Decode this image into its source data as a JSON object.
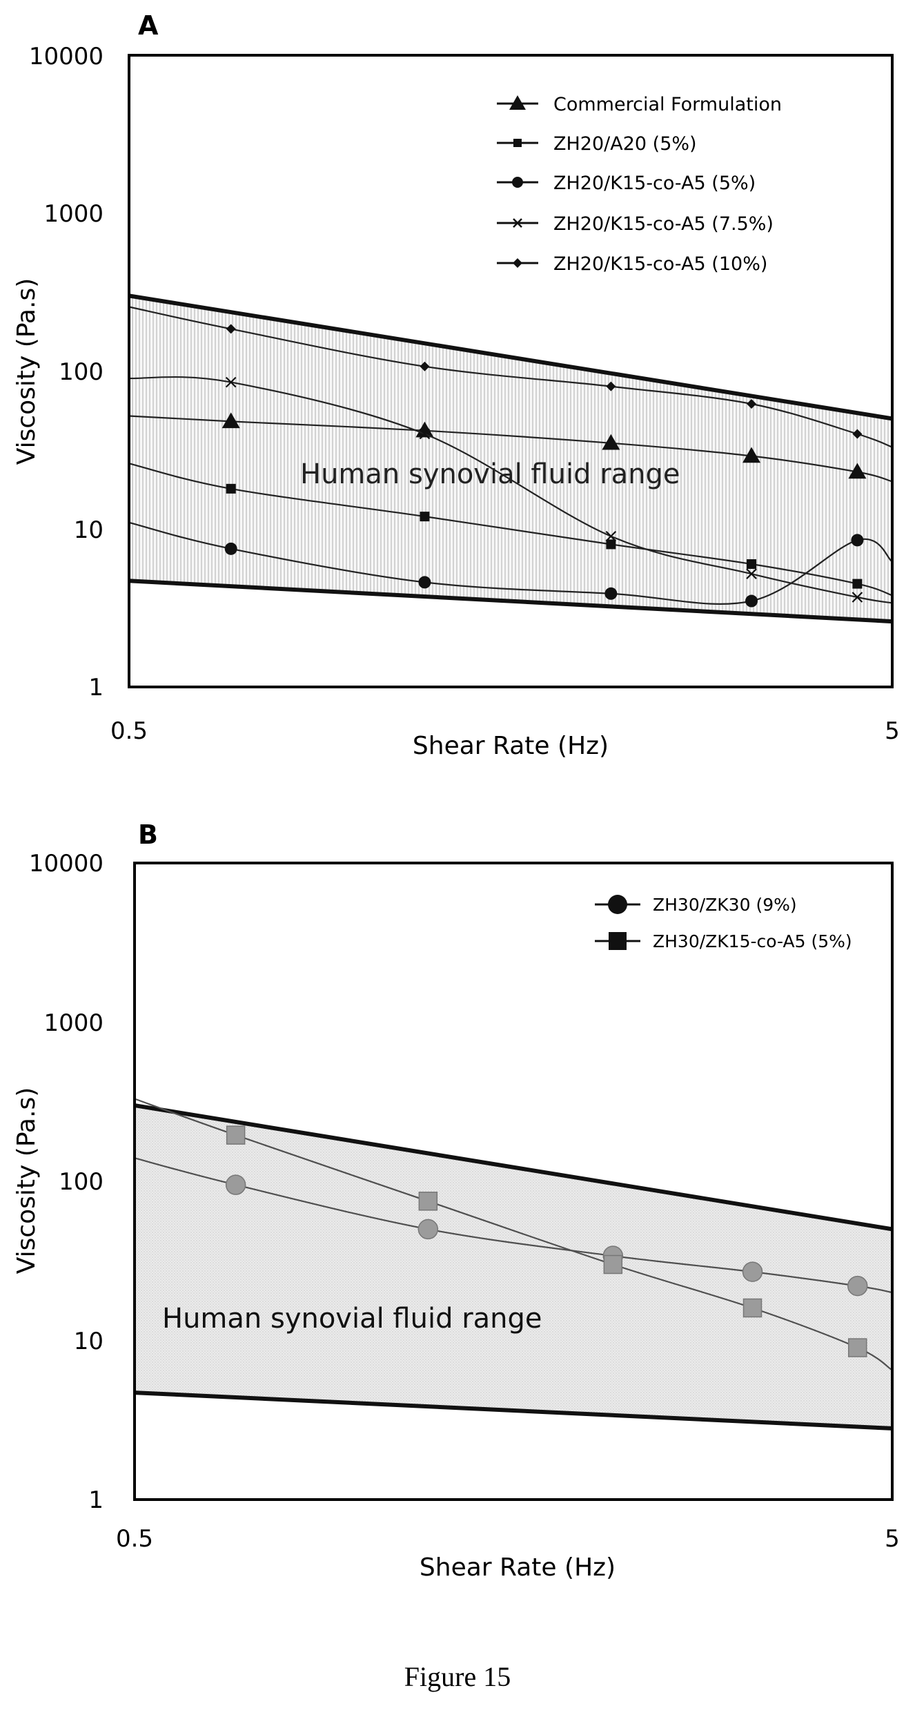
{
  "figure_caption": "Figure 15",
  "chart_data": [
    {
      "panel_label": "A",
      "type": "line",
      "x_scale": "log",
      "y_scale": "log",
      "xlabel": "Shear Rate (Hz)",
      "ylabel": "Viscosity (Pa.s)",
      "xlim": [
        0.5,
        5
      ],
      "ylim": [
        1,
        10000
      ],
      "x_ticks": [
        "0.5",
        "5"
      ],
      "y_ticks": [
        "1",
        "10",
        "100",
        "1000",
        "10000"
      ],
      "grid": false,
      "legend_position": "top-right",
      "band_label": "Human synovial fluid range",
      "band": {
        "x": [
          0.5,
          5
        ],
        "upper": [
          300,
          50
        ],
        "lower": [
          4.7,
          2.6
        ]
      },
      "series": [
        {
          "name": "Commercial Formulation",
          "marker": "triangle",
          "x": [
            0.68,
            1.22,
            2.14,
            3.27,
            4.5
          ],
          "values": [
            48,
            42,
            35,
            29,
            23
          ],
          "start": 52,
          "end": 20
        },
        {
          "name": "ZH20/A20 (5%)",
          "marker": "square",
          "x": [
            0.68,
            1.22,
            2.14,
            3.27,
            4.5
          ],
          "values": [
            18,
            12,
            8,
            6,
            4.5
          ],
          "start": 26,
          "end": 3.8
        },
        {
          "name": "ZH20/K15-co-A5 (5%)",
          "marker": "circle",
          "x": [
            0.68,
            1.22,
            2.14,
            3.27,
            4.5
          ],
          "values": [
            7.5,
            4.6,
            3.9,
            3.5,
            8.5
          ],
          "start": 11,
          "end": 6.2
        },
        {
          "name": "ZH20/K15-co-A5 (7.5%)",
          "marker": "x",
          "x": [
            0.68,
            1.22,
            2.14,
            3.27,
            4.5
          ],
          "values": [
            85,
            40,
            9,
            5.2,
            3.7
          ],
          "start": 90,
          "end": 3.4
        },
        {
          "name": "ZH20/K15-co-A5 (10%)",
          "marker": "diamond",
          "x": [
            0.68,
            1.22,
            2.14,
            3.27,
            4.5
          ],
          "values": [
            185,
            107,
            80,
            62,
            40
          ],
          "start": 255,
          "end": 33
        }
      ]
    },
    {
      "panel_label": "B",
      "type": "line",
      "x_scale": "log",
      "y_scale": "log",
      "xlabel": "Shear Rate (Hz)",
      "ylabel": "Viscosity (Pa.s)",
      "xlim": [
        0.5,
        5
      ],
      "ylim": [
        1,
        10000
      ],
      "x_ticks": [
        "0.5",
        "5"
      ],
      "y_ticks": [
        "1",
        "10",
        "100",
        "1000",
        "10000"
      ],
      "grid": false,
      "legend_position": "top-right",
      "band_label": "Human synovial fluid range",
      "band": {
        "x": [
          0.5,
          5
        ],
        "upper": [
          300,
          50
        ],
        "lower": [
          4.7,
          2.8
        ]
      },
      "series": [
        {
          "name": "ZH30/ZK30 (9%)",
          "marker": "circle",
          "x": [
            0.68,
            1.22,
            2.14,
            3.27,
            4.5
          ],
          "values": [
            95,
            50,
            34,
            27,
            22
          ],
          "start": 140,
          "end": 20
        },
        {
          "name": "ZH30/ZK15-co-A5 (5%)",
          "marker": "square",
          "x": [
            0.68,
            1.22,
            2.14,
            3.27,
            4.5
          ],
          "values": [
            195,
            75,
            30,
            16,
            9
          ],
          "start": 330,
          "end": 6.5
        }
      ]
    }
  ]
}
